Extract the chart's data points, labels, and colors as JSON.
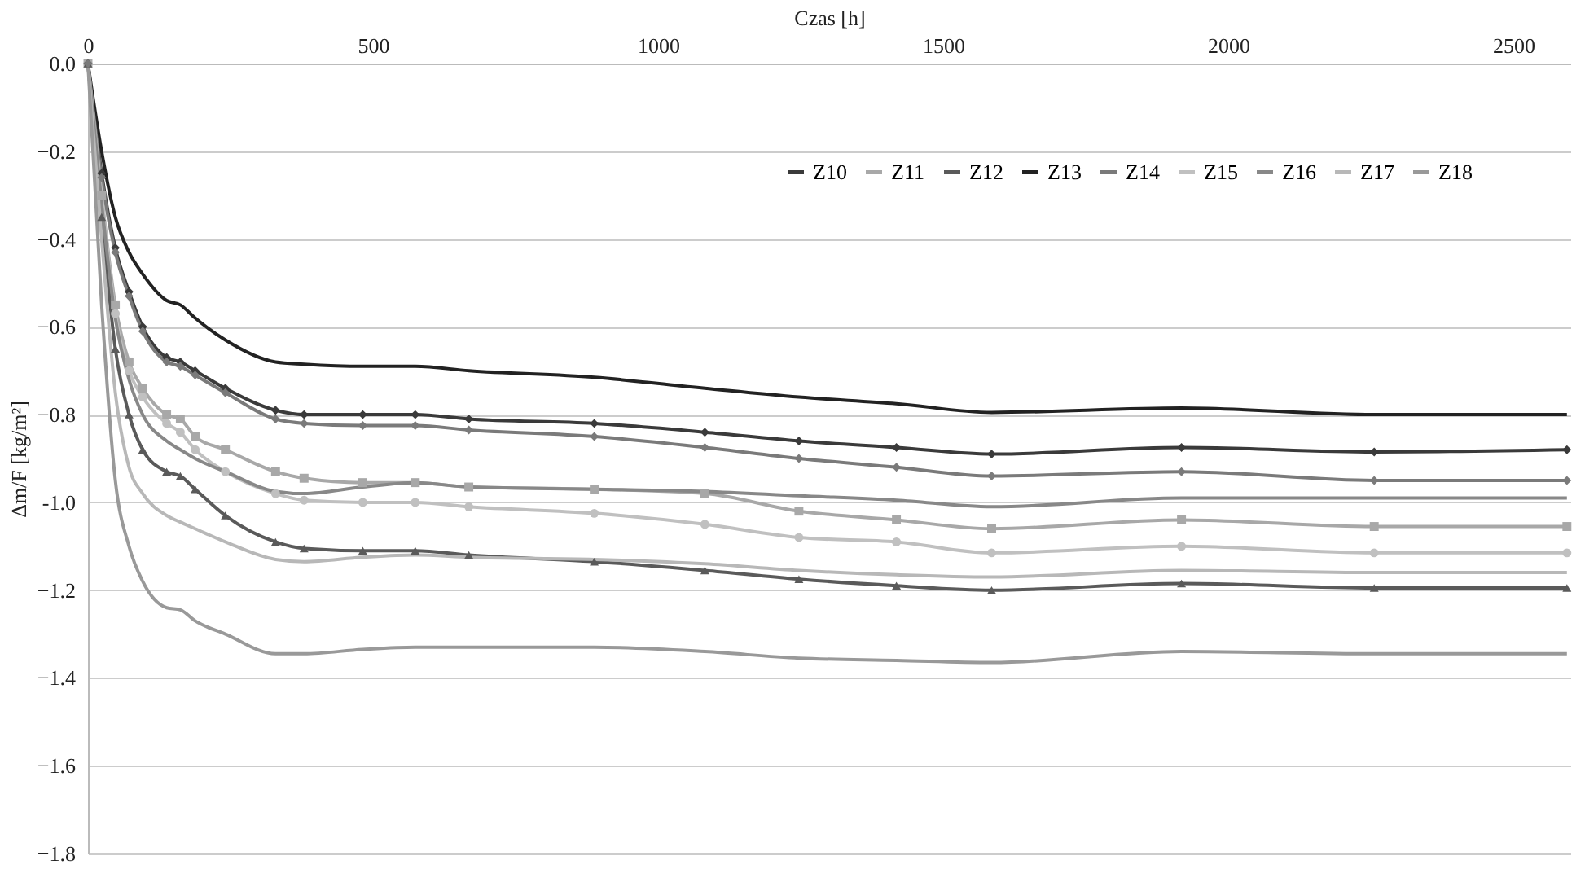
{
  "chart_data": {
    "type": "line",
    "xlabel": "Czas [h]",
    "ylabel": "Δm/F [kg/m²]",
    "x": [
      0,
      24,
      48,
      72,
      96,
      138,
      162,
      188,
      241,
      329,
      379,
      482,
      574,
      668,
      888,
      1082,
      1247,
      1418,
      1585,
      1918,
      2256,
      2594
    ],
    "xlim": [
      0,
      2600
    ],
    "xticks": [
      0,
      500,
      1000,
      1500,
      2000,
      2500
    ],
    "ylim": [
      -1.8,
      0
    ],
    "yticks": [
      {
        "value": 0,
        "label": "0.0"
      },
      -0.2,
      -0.4,
      -0.6,
      -0.8,
      {
        "value": -1,
        "label": "-1.0"
      },
      -1.2,
      -1.4,
      -1.6,
      -1.8
    ],
    "grid": "y",
    "legend": "top right",
    "line_style": "solid",
    "series": [
      {
        "name": "Z10",
        "color": "#3a3a3a",
        "marker": "diamond",
        "values": [
          0,
          -0.25,
          -0.42,
          -0.52,
          -0.6,
          -0.67,
          -0.68,
          -0.7,
          -0.74,
          -0.79,
          -0.8,
          -0.8,
          -0.8,
          -0.81,
          -0.82,
          -0.84,
          -0.86,
          -0.875,
          -0.89,
          -0.875,
          -0.885,
          -0.88
        ]
      },
      {
        "name": "Z11",
        "color": "#a8a8a8",
        "marker": "square",
        "values": [
          0,
          -0.3,
          -0.55,
          -0.68,
          -0.74,
          -0.8,
          -0.81,
          -0.85,
          -0.88,
          -0.93,
          -0.945,
          -0.955,
          -0.955,
          -0.965,
          -0.97,
          -0.98,
          -1.02,
          -1.04,
          -1.06,
          -1.04,
          -1.055,
          -1.055
        ]
      },
      {
        "name": "Z12",
        "color": "#5a5a5a",
        "marker": "triangle",
        "values": [
          0,
          -0.35,
          -0.65,
          -0.8,
          -0.88,
          -0.93,
          -0.94,
          -0.97,
          -1.03,
          -1.09,
          -1.105,
          -1.11,
          -1.11,
          -1.12,
          -1.135,
          -1.155,
          -1.175,
          -1.19,
          -1.2,
          -1.185,
          -1.195,
          -1.195
        ]
      },
      {
        "name": "Z13",
        "color": "#222222",
        "marker": "none",
        "values": [
          0,
          -0.2,
          -0.35,
          -0.43,
          -0.48,
          -0.54,
          -0.55,
          -0.58,
          -0.63,
          -0.68,
          -0.685,
          -0.69,
          -0.69,
          -0.7,
          -0.715,
          -0.74,
          -0.76,
          -0.775,
          -0.795,
          -0.785,
          -0.8,
          -0.8
        ]
      },
      {
        "name": "Z14",
        "color": "#7a7a7a",
        "marker": "diamond",
        "values": [
          0,
          -0.26,
          -0.43,
          -0.53,
          -0.61,
          -0.68,
          -0.69,
          -0.71,
          -0.75,
          -0.81,
          -0.82,
          -0.825,
          -0.825,
          -0.835,
          -0.85,
          -0.875,
          -0.9,
          -0.92,
          -0.94,
          -0.93,
          -0.95,
          -0.95
        ]
      },
      {
        "name": "Z15",
        "color": "#c0c0c0",
        "marker": "circle",
        "values": [
          0,
          -0.3,
          -0.57,
          -0.7,
          -0.76,
          -0.82,
          -0.84,
          -0.88,
          -0.93,
          -0.98,
          -0.995,
          -1.0,
          -1.0,
          -1.01,
          -1.025,
          -1.05,
          -1.08,
          -1.09,
          -1.115,
          -1.1,
          -1.115,
          -1.115
        ]
      },
      {
        "name": "Z16",
        "color": "#888888",
        "marker": "none",
        "values": [
          0,
          -0.32,
          -0.58,
          -0.72,
          -0.8,
          -0.86,
          -0.88,
          -0.9,
          -0.93,
          -0.975,
          -0.98,
          -0.965,
          -0.955,
          -0.965,
          -0.97,
          -0.975,
          -0.985,
          -0.995,
          -1.01,
          -0.99,
          -0.99,
          -0.99
        ]
      },
      {
        "name": "Z17",
        "color": "#b8b8b8",
        "marker": "none",
        "values": [
          0,
          -0.4,
          -0.75,
          -0.92,
          -0.98,
          -1.03,
          -1.045,
          -1.06,
          -1.09,
          -1.13,
          -1.135,
          -1.125,
          -1.12,
          -1.125,
          -1.13,
          -1.14,
          -1.155,
          -1.165,
          -1.17,
          -1.155,
          -1.16,
          -1.16
        ]
      },
      {
        "name": "Z18",
        "color": "#999999",
        "marker": "none",
        "values": [
          0,
          -0.55,
          -0.95,
          -1.1,
          -1.18,
          -1.24,
          -1.245,
          -1.27,
          -1.3,
          -1.345,
          -1.345,
          -1.335,
          -1.33,
          -1.33,
          -1.33,
          -1.34,
          -1.355,
          -1.36,
          -1.365,
          -1.34,
          -1.345,
          -1.345
        ]
      }
    ]
  }
}
